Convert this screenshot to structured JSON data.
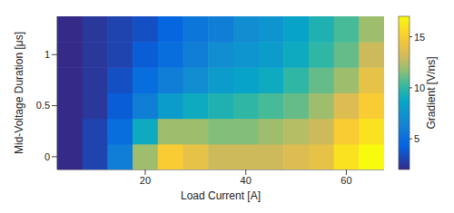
{
  "chart_data": {
    "type": "heatmap",
    "xlabel": "Load Current [A]",
    "ylabel": "Mid-Voltage Duration [μs]",
    "x": [
      5,
      10,
      15,
      20,
      25,
      30,
      35,
      40,
      45,
      50,
      55,
      60,
      65
    ],
    "y": [
      0,
      0.25,
      0.5,
      0.75,
      1,
      1.25
    ],
    "values": [
      [
        2,
        3,
        6,
        12,
        15,
        14,
        13,
        13,
        13,
        13.5,
        14,
        16,
        17
      ],
      [
        2,
        3,
        5,
        9,
        12,
        12,
        11.5,
        11.5,
        12,
        12.5,
        13,
        15,
        16
      ],
      [
        2,
        2.5,
        4,
        6,
        8,
        9,
        9.5,
        10,
        10.5,
        11,
        12,
        13.5,
        15
      ],
      [
        2,
        2.5,
        3.5,
        5,
        6,
        7,
        8,
        8.5,
        9,
        10,
        11,
        12,
        14
      ],
      [
        2,
        2.5,
        3,
        4,
        5,
        6,
        7,
        7.5,
        8,
        9,
        10,
        11,
        13
      ],
      [
        2,
        2.5,
        3,
        3.5,
        4.5,
        5.5,
        6,
        7,
        7.5,
        8.5,
        9.5,
        10.5,
        12
      ]
    ],
    "xlim": [
      2.5,
      67.5
    ],
    "xticks": [
      20,
      40,
      60
    ],
    "ylim": [
      -0.125,
      1.375
    ],
    "yticks": [
      0,
      0.5,
      1
    ],
    "colorbar_label": "Gradient [V/ns]",
    "colorbar_range": [
      2,
      17
    ],
    "colorbar_ticks": [
      5,
      10,
      15
    ]
  }
}
